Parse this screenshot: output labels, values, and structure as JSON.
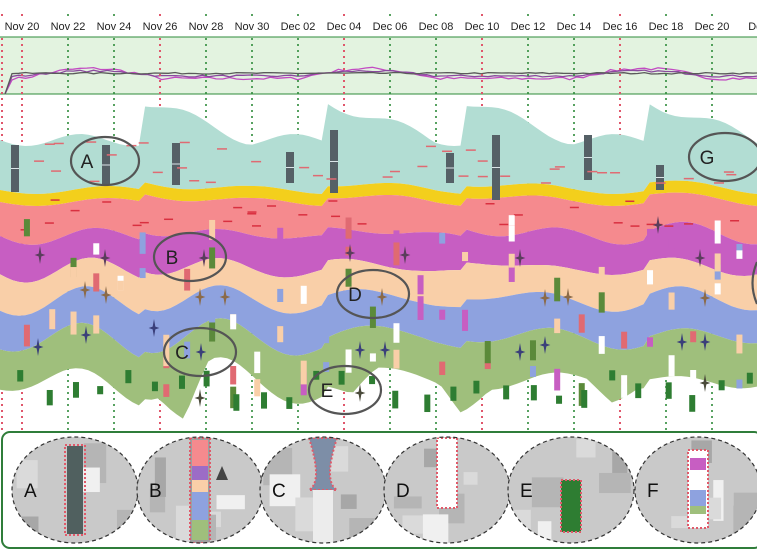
{
  "chart_data": {
    "type": "area",
    "x_axis": {
      "type": "date",
      "ticks": [
        "Nov 20",
        "Nov 22",
        "Nov 24",
        "Nov 26",
        "Nov 28",
        "Nov 30",
        "Dec 02",
        "Dec 04",
        "Dec 06",
        "Dec 08",
        "Dec 10",
        "Dec 12",
        "Dec 14",
        "Dec 16",
        "Dec 18",
        "Dec 20",
        "Dec"
      ]
    },
    "highlighted_days": [
      "Nov 20",
      "Nov 26",
      "Dec 04",
      "Dec 10",
      "Dec 16",
      "Dec 22"
    ],
    "grid": "vertical dotted green lines; red dotted lines on highlighted days",
    "overview_series": [
      "magenta",
      "purple",
      "dark gray"
    ],
    "layers": [
      {
        "color": "#b2ddd3"
      },
      {
        "color": "#f3cf1c"
      },
      {
        "color": "#f58a8e"
      },
      {
        "color": "#c75ec2"
      },
      {
        "color": "#f9cfa8"
      },
      {
        "color": "#8ea2df"
      },
      {
        "color": "#9fbf7c"
      }
    ],
    "callouts": [
      "A",
      "B",
      "C",
      "D",
      "E",
      "G"
    ],
    "zoom_panels": [
      "A",
      "B",
      "C",
      "D",
      "E",
      "F"
    ]
  },
  "colors": {
    "overview_bg": "#e3f3e0",
    "grid_green": "#2e8b3a",
    "grid_red": "#e0566b",
    "panel_border": "#2f7d3a",
    "glyph_dark": "#556066"
  }
}
